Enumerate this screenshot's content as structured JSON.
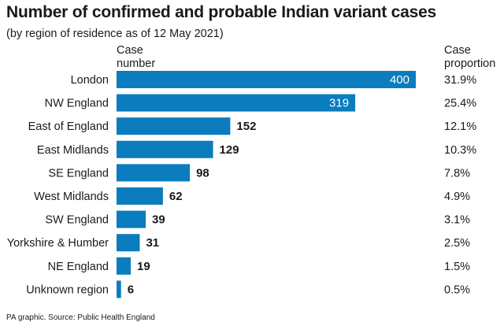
{
  "title": "Number of confirmed and probable Indian variant cases",
  "subtitle": "(by region of residence as of 12 May 2021)",
  "columns": {
    "case_number": "Case\nnumber",
    "case_proportion": "Case\nproportion"
  },
  "footer": "PA graphic. Source: Public Health England",
  "colors": {
    "bar": "#0b7cbd"
  },
  "chart_data": {
    "type": "bar",
    "orientation": "horizontal",
    "title": "Number of confirmed and probable Indian variant cases",
    "subtitle": "(by region of residence as of 12 May 2021)",
    "categories": [
      "London",
      "NW England",
      "East of England",
      "East Midlands",
      "SE England",
      "West Midlands",
      "SW England",
      "Yorkshire & Humber",
      "NE England",
      "Unknown region"
    ],
    "values": [
      400,
      319,
      152,
      129,
      98,
      62,
      39,
      31,
      19,
      6
    ],
    "proportions": [
      "31.9%",
      "25.4%",
      "12.1%",
      "10.3%",
      "7.8%",
      "4.9%",
      "3.1%",
      "2.5%",
      "1.5%",
      "0.5%"
    ],
    "xlim": [
      0,
      400
    ],
    "grid": false,
    "legend": false
  }
}
